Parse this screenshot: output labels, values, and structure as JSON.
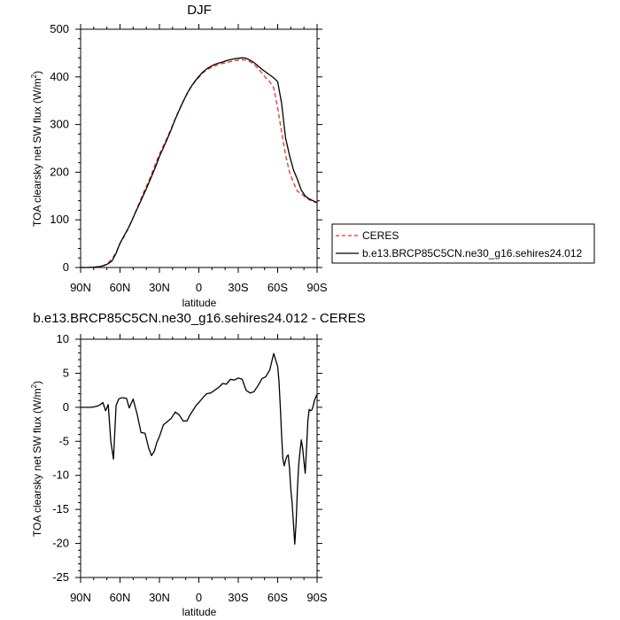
{
  "chart_data": [
    {
      "type": "line",
      "title": "DJF",
      "xlabel": "latitude",
      "ylabel": "TOA clearsky net SW flux (W/m",
      "ylabel_sup": "2",
      "ylabel_close": ")",
      "xlim": [
        90,
        -90
      ],
      "ylim": [
        0,
        500
      ],
      "x_ticks": [
        90,
        60,
        30,
        0,
        -30,
        -60,
        -90
      ],
      "x_tick_labels": [
        "90N",
        "60N",
        "30N",
        "0",
        "30S",
        "60S",
        "90S"
      ],
      "y_ticks": [
        0,
        100,
        200,
        300,
        400,
        500
      ],
      "y_tick_labels": [
        "0",
        "100",
        "200",
        "300",
        "400",
        "500"
      ],
      "legend_position": "right",
      "series": [
        {
          "name": "CERES",
          "color": "#e8312a",
          "dash": "dashed",
          "x": [
            90,
            85,
            80,
            75,
            72,
            69,
            66,
            63,
            60,
            57,
            54,
            51,
            48,
            45,
            42,
            39,
            36,
            33,
            30,
            27,
            24,
            21,
            18,
            15,
            12,
            9,
            6,
            3,
            0,
            -3,
            -6,
            -9,
            -12,
            -15,
            -18,
            -21,
            -24,
            -27,
            -30,
            -33,
            -36,
            -39,
            -42,
            -45,
            -48,
            -51,
            -54,
            -57,
            -60,
            -63,
            -66,
            -69,
            -72,
            -75,
            -78,
            -81,
            -84,
            -87,
            -90
          ],
          "y": [
            0,
            0,
            0.5,
            2,
            5,
            10,
            18,
            32,
            50,
            64,
            80,
            98,
            118,
            138,
            158,
            176,
            196,
            218,
            238,
            255,
            273,
            292,
            312,
            331,
            348,
            364,
            378,
            390,
            399,
            408,
            415,
            419,
            423,
            426,
            428,
            430,
            432,
            434,
            435,
            436,
            435,
            432,
            426,
            418,
            408,
            398,
            390,
            377,
            335,
            285,
            236,
            200,
            178,
            160,
            155,
            148,
            142,
            138,
            136
          ]
        },
        {
          "name": "b.e13.BRCP85C5CN.ne30_g16.sehires24.012",
          "color": "#000000",
          "dash": "solid",
          "x": [
            90,
            85,
            80,
            75,
            72,
            69,
            66,
            63,
            60,
            57,
            54,
            51,
            48,
            45,
            42,
            39,
            36,
            33,
            30,
            27,
            24,
            21,
            18,
            15,
            12,
            9,
            6,
            3,
            0,
            -3,
            -6,
            -9,
            -12,
            -15,
            -18,
            -21,
            -24,
            -27,
            -30,
            -33,
            -36,
            -39,
            -42,
            -45,
            -48,
            -51,
            -54,
            -57,
            -60,
            -63,
            -66,
            -69,
            -72,
            -75,
            -78,
            -81,
            -84,
            -87,
            -90
          ],
          "y": [
            0,
            0,
            0.5,
            2,
            4,
            8,
            14,
            30,
            51,
            66,
            81,
            98,
            117,
            135,
            153,
            171,
            191,
            211,
            233,
            251,
            270,
            290,
            311,
            330,
            348,
            365,
            379,
            391,
            401,
            410,
            417,
            422,
            426,
            429,
            431,
            434,
            436,
            438,
            439,
            440,
            439,
            435,
            430,
            423,
            416,
            410,
            404,
            398,
            390,
            345,
            272,
            235,
            205,
            185,
            162,
            150,
            144,
            140,
            136
          ]
        }
      ]
    },
    {
      "type": "line",
      "title": "b.e13.BRCP85C5CN.ne30_g16.sehires24.012 - CERES",
      "xlabel": "latitude",
      "ylabel": "TOA clearsky net SW flux (W/m",
      "ylabel_sup": "2",
      "ylabel_close": ")",
      "xlim": [
        90,
        -90
      ],
      "ylim": [
        -25,
        10
      ],
      "x_ticks": [
        90,
        60,
        30,
        0,
        -30,
        -60,
        -90
      ],
      "x_tick_labels": [
        "90N",
        "60N",
        "30N",
        "0",
        "30S",
        "60S",
        "90S"
      ],
      "y_ticks": [
        -25,
        -20,
        -15,
        -10,
        -5,
        0,
        5,
        10
      ],
      "y_tick_labels": [
        "-25",
        "-20",
        "-15",
        "-10",
        "-5",
        "0",
        "5",
        "10"
      ],
      "series": [
        {
          "name": "",
          "color": "#000000",
          "dash": "solid",
          "x": [
            90,
            86,
            82,
            79,
            77,
            75,
            73,
            71,
            69,
            67,
            65,
            63,
            61,
            59,
            57,
            55,
            53,
            50,
            47,
            44,
            41,
            38,
            36,
            34,
            32,
            30,
            27,
            24,
            21,
            18,
            15,
            12,
            9,
            7,
            5,
            2,
            0,
            -3,
            -6,
            -9,
            -12,
            -15,
            -18,
            -21,
            -24,
            -27,
            -30,
            -33,
            -36,
            -39,
            -42,
            -45,
            -48,
            -51,
            -54,
            -57,
            -60,
            -61,
            -62,
            -63,
            -64,
            -65,
            -66,
            -67,
            -68,
            -69,
            -70,
            -71,
            -72,
            -73,
            -74,
            -75,
            -76,
            -77,
            -78,
            -79,
            -80,
            -81,
            -82,
            -83,
            -84,
            -85,
            -86,
            -87,
            -88,
            -89,
            -90
          ],
          "y": [
            0,
            0,
            0,
            0.1,
            0.2,
            0.4,
            0.7,
            -0.5,
            0.4,
            -5.0,
            -7.6,
            0.3,
            1.2,
            1.4,
            1.4,
            1.3,
            -0.1,
            1.2,
            -1.0,
            -3.7,
            -3.8,
            -6.1,
            -7.1,
            -6.5,
            -5.2,
            -4.3,
            -2.6,
            -2.1,
            -1.6,
            -0.7,
            -1.1,
            -2.0,
            -2.0,
            -1.2,
            -0.6,
            0.3,
            0.7,
            1.4,
            2.0,
            2.1,
            2.5,
            2.9,
            3.5,
            3.4,
            4.1,
            4.0,
            4.3,
            4.1,
            2.5,
            2.1,
            2.3,
            3.2,
            4.2,
            4.5,
            5.5,
            7.9,
            6.0,
            3.8,
            0.0,
            -4.0,
            -7.6,
            -8.6,
            -7.8,
            -7.2,
            -7.0,
            -9.0,
            -12.0,
            -14.0,
            -17.0,
            -20.1,
            -17.0,
            -12.0,
            -8.5,
            -6.5,
            -4.8,
            -6.0,
            -8.0,
            -9.7,
            -6.0,
            -2.0,
            -0.3,
            -0.5,
            -0.4,
            0.2,
            1.0,
            1.5,
            1.9
          ]
        }
      ]
    }
  ]
}
